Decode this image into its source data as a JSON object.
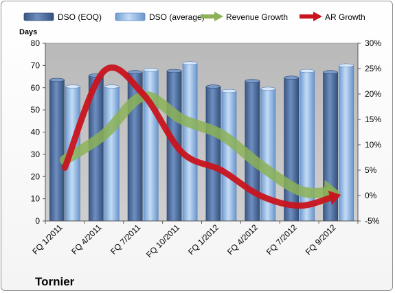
{
  "chart_data": {
    "type": "bar",
    "title": "",
    "company": "Tornier",
    "ylabel": "Days",
    "ylim": [
      0,
      80
    ],
    "yticks": [
      0,
      10,
      20,
      30,
      40,
      50,
      60,
      70,
      80
    ],
    "y2lim": [
      -5,
      30
    ],
    "y2ticks": [
      "-5%",
      "0%",
      "5%",
      "10%",
      "15%",
      "20%",
      "25%",
      "30%"
    ],
    "categories": [
      "FQ 1/2011",
      "FQ 4/2011",
      "FQ 7/2011",
      "FQ 10/2011",
      "FQ 1/2012",
      "FQ 4/2012",
      "FQ 7/2012",
      "FQ 9/2012"
    ],
    "series": [
      {
        "name": "DSO (EOQ)",
        "kind": "bar",
        "values": [
          63.5,
          65.5,
          67,
          67.5,
          60.5,
          63,
          64.5,
          67
        ]
      },
      {
        "name": "DSO (average)",
        "kind": "bar",
        "values": [
          60.5,
          60.5,
          68,
          71,
          58.5,
          59.5,
          67.5,
          70
        ]
      },
      {
        "name": "Revenue Growth",
        "kind": "arrow-line",
        "axis": "right",
        "values": [
          7,
          12,
          19.5,
          15,
          12,
          6,
          1,
          0.5
        ]
      },
      {
        "name": "AR Growth",
        "kind": "arrow-line",
        "axis": "right",
        "values": [
          5.5,
          24.5,
          20,
          8.5,
          5,
          0,
          -2,
          0
        ]
      }
    ],
    "colors": {
      "bar_eoq": "#4f6d9a",
      "bar_avg": "#8fb4e3",
      "revenue_growth": "#8cb157",
      "ar_growth": "#c8141e",
      "plot_bg": "#c0c0c0"
    },
    "legend_position": "top",
    "grid": false
  }
}
